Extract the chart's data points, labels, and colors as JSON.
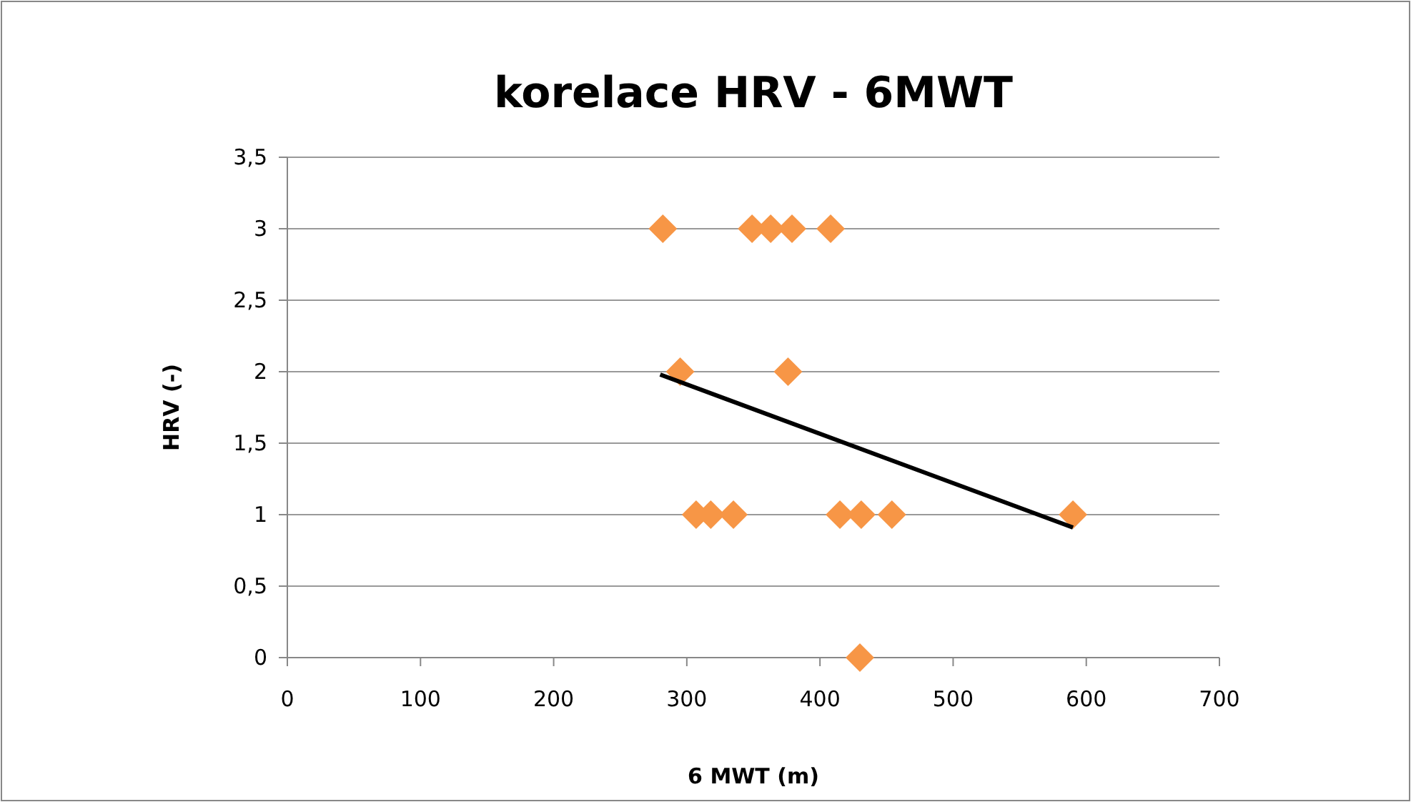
{
  "chart_data": {
    "type": "scatter",
    "title": "korelace HRV - 6MWT",
    "xlabel": "6 MWT (m)",
    "ylabel": "HRV (-)",
    "xlim": [
      0,
      700
    ],
    "xticks": [
      0,
      100,
      200,
      300,
      400,
      500,
      600,
      700
    ],
    "ylim": [
      0,
      3.5
    ],
    "yticks": [
      0,
      {
        "value": 0.5,
        "label": "0,5"
      },
      1,
      {
        "value": 1.5,
        "label": "1,5"
      },
      2,
      {
        "value": 2.5,
        "label": "2,5"
      },
      3,
      {
        "value": 3.5,
        "label": "3,5"
      }
    ],
    "grid": "y",
    "marker": "diamond",
    "series": [
      {
        "color": "#f79646",
        "x": [
          282,
          349,
          363,
          379,
          408,
          295,
          376,
          307,
          318,
          335,
          415,
          431,
          454,
          590,
          430
        ],
        "values": [
          3,
          3,
          3,
          3,
          3,
          2,
          2,
          1,
          1,
          1,
          1,
          1,
          1,
          1,
          0
        ]
      },
      {
        "type": "line",
        "color": "#000000",
        "marker": "none",
        "line_style": "solid",
        "x": [
          280,
          590
        ],
        "values": [
          1.98,
          0.91
        ]
      }
    ]
  }
}
